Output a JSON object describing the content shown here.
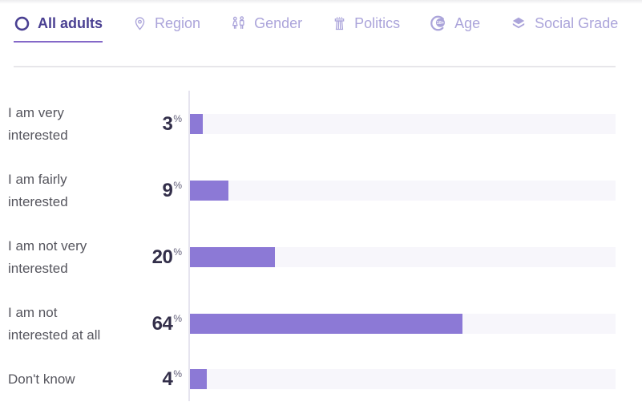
{
  "colors": {
    "accent": "#8c79d6",
    "track": "#f7f6fb",
    "axis": "#e6e4ef",
    "tab-active": "#4a4092",
    "tab-inactive": "#aba4da",
    "underline": "#8468c8",
    "divider": "#e7e6ea",
    "label": "#56565e",
    "value": "#332f4a",
    "percent": "#615e78"
  },
  "tabs": {
    "items": [
      {
        "label": "All adults",
        "icon": "circle-icon",
        "active": true
      },
      {
        "label": "Region",
        "icon": "map-pin-icon",
        "active": false
      },
      {
        "label": "Gender",
        "icon": "gender-icon",
        "active": false
      },
      {
        "label": "Politics",
        "icon": "podium-icon",
        "active": false
      },
      {
        "label": "Age",
        "icon": "age-18-plus-icon",
        "active": false
      },
      {
        "label": "Social Grade",
        "icon": "layers-icon",
        "active": false
      }
    ]
  },
  "chart_data": {
    "type": "bar",
    "orientation": "horizontal",
    "title": "",
    "categories": [
      "I am very\ninterested",
      "I am fairly\ninterested",
      "I am not very\ninterested",
      "I am not\ninterested at all",
      "Don't know"
    ],
    "values": [
      3,
      9,
      20,
      64,
      4
    ],
    "unit": "%",
    "xlim": [
      0,
      100
    ],
    "grid": false,
    "legend": "none",
    "value_label_position": "left-of-bar"
  }
}
